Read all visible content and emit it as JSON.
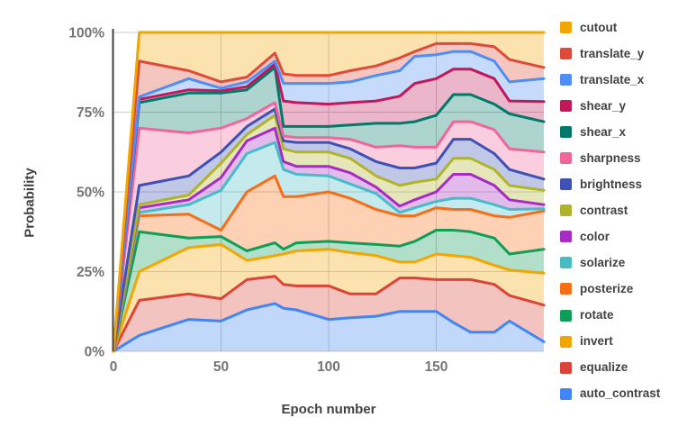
{
  "chart_data": {
    "type": "area",
    "stacked": true,
    "title": "",
    "xlabel": "Epoch number",
    "ylabel": "Probability",
    "xlim": [
      0,
      200
    ],
    "ylim": [
      0,
      100
    ],
    "xticks": [
      0,
      50,
      100,
      150
    ],
    "yticks": [
      0,
      25,
      50,
      75,
      100
    ],
    "ytick_labels": [
      "0%",
      "25%",
      "50%",
      "75%",
      "100%"
    ],
    "grid": true,
    "legend_position": "right",
    "axis_color": "#424242",
    "grid_color": "#cccccc",
    "tick_label_color": "#757575",
    "fill_opacity": 0.32,
    "x": [
      0,
      12,
      35,
      50,
      62,
      75,
      79,
      85,
      100,
      110,
      122,
      133,
      140,
      150,
      158,
      166,
      177,
      184,
      200
    ],
    "series_note": "values are probability percentages; legend order top-to-bottom, stacking order is reversed (auto_contrast at bottom)",
    "series": [
      {
        "name": "cutout",
        "color": "#F2A602",
        "values": [
          0,
          9,
          12,
          15.5,
          14,
          6.5,
          13,
          13.5,
          13.5,
          12,
          10.5,
          8,
          6,
          3.5,
          3.5,
          3.5,
          4.5,
          8.5,
          11
        ]
      },
      {
        "name": "translate_y",
        "color": "#DF4B38",
        "values": [
          0,
          11.2,
          2.5,
          2,
          1.5,
          2.5,
          3,
          2.5,
          2.5,
          3.5,
          3,
          4,
          1.5,
          3.5,
          2.5,
          2.5,
          4.5,
          7,
          3.5
        ]
      },
      {
        "name": "translate_x",
        "color": "#4F8EF5",
        "values": [
          0,
          0.8,
          3.5,
          0.8,
          1.5,
          1,
          5.5,
          6,
          6.5,
          6.5,
          8,
          8,
          8.5,
          7.5,
          5.5,
          5.5,
          5.5,
          6,
          7.2
        ]
      },
      {
        "name": "shear_y",
        "color": "#C2185B",
        "values": [
          0,
          1,
          1,
          0.7,
          1,
          1,
          8,
          7.5,
          7,
          7,
          7,
          8.5,
          12,
          11.5,
          8,
          8,
          8,
          4,
          6.3
        ]
      },
      {
        "name": "shear_x",
        "color": "#00796B",
        "values": [
          0,
          8,
          12.5,
          11,
          9,
          11,
          3,
          3.5,
          3.5,
          4.5,
          7.5,
          7,
          8,
          10,
          8.5,
          8.5,
          8,
          11,
          9.5
        ]
      },
      {
        "name": "sharpness",
        "color": "#F0669C",
        "values": [
          0,
          18,
          13.5,
          7.5,
          2.5,
          2,
          1.5,
          1.5,
          1.5,
          3,
          4.5,
          7,
          6.5,
          5,
          5.5,
          5.5,
          7.5,
          6.5,
          8.5
        ]
      },
      {
        "name": "brightness",
        "color": "#3F51B5",
        "values": [
          0,
          6,
          6,
          3.5,
          2.5,
          2,
          2.5,
          3,
          3,
          3,
          4.5,
          5.5,
          4.5,
          5,
          6,
          6,
          5,
          5,
          3.5
        ]
      },
      {
        "name": "contrast",
        "color": "#AFB42B",
        "values": [
          0,
          1,
          1.5,
          4.5,
          2,
          4,
          4,
          4.5,
          4.5,
          4.5,
          3.5,
          6.5,
          5.5,
          4,
          5,
          5,
          5,
          4.5,
          4.5
        ]
      },
      {
        "name": "color",
        "color": "#A62CC4",
        "values": [
          0,
          1.5,
          1.5,
          4,
          4,
          4.5,
          2.5,
          2.5,
          3,
          3.5,
          2,
          2,
          2.5,
          3,
          7.5,
          7.5,
          6,
          3,
          1.3
        ]
      },
      {
        "name": "solarize",
        "color": "#46BDC6",
        "values": [
          0,
          1,
          3,
          12.5,
          12,
          10.5,
          8.5,
          7,
          5,
          4.5,
          5,
          1,
          2.5,
          2,
          3.5,
          3.5,
          3.5,
          2.5,
          0.7
        ]
      },
      {
        "name": "posterize",
        "color": "#FB6C16",
        "values": [
          0,
          5,
          7.5,
          2,
          18.5,
          21,
          16.5,
          14.5,
          15.5,
          14,
          11,
          9.5,
          8,
          7,
          6.5,
          7,
          7,
          11.5,
          12
        ]
      },
      {
        "name": "rotate",
        "color": "#0F9D58",
        "values": [
          0,
          12.5,
          3,
          2.5,
          3,
          4,
          1.5,
          2.5,
          2.5,
          3,
          3.5,
          5,
          6.5,
          7.5,
          8,
          8,
          8.5,
          5,
          7.5
        ]
      },
      {
        "name": "invert",
        "color": "#F2A602",
        "values": [
          0,
          9,
          14.5,
          17,
          6,
          6.5,
          9.5,
          11,
          11.5,
          13,
          12,
          5,
          5,
          8,
          7.5,
          7,
          6,
          8,
          10
        ]
      },
      {
        "name": "equalize",
        "color": "#DB4437",
        "values": [
          0,
          11,
          8,
          7,
          9.5,
          8.5,
          7.5,
          7.5,
          10.5,
          7.5,
          7,
          10.5,
          10.5,
          10,
          13.5,
          16.5,
          15,
          8,
          11.5
        ]
      },
      {
        "name": "auto_contrast",
        "color": "#4285F4",
        "values": [
          0,
          5,
          10,
          9.5,
          13,
          15,
          13.5,
          13,
          10,
          10.5,
          11,
          12.5,
          12.5,
          12.5,
          9,
          6,
          6,
          9.5,
          3
        ]
      }
    ]
  }
}
